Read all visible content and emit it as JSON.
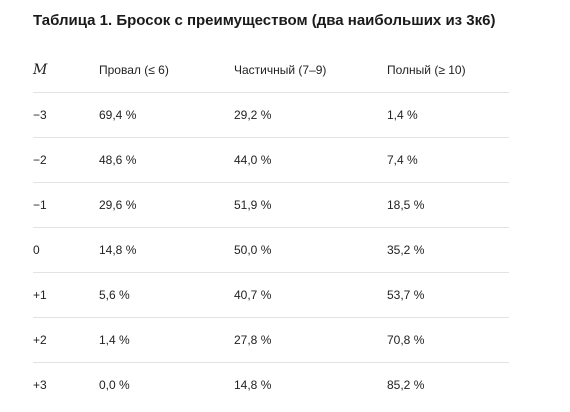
{
  "caption": "Таблица 1. Бросок с преимуществом (два наибольших из 3к6)",
  "table": {
    "headers": {
      "m": "M",
      "fail": "Провал (≤ 6)",
      "partial": "Частичный (7–9)",
      "full": "Полный (≥ 10)"
    },
    "rows": [
      {
        "m": "−3",
        "fail": "69,4 %",
        "partial": "29,2 %",
        "full": "1,4 %"
      },
      {
        "m": "−2",
        "fail": "48,6 %",
        "partial": "44,0 %",
        "full": "7,4 %"
      },
      {
        "m": "−1",
        "fail": "29,6 %",
        "partial": "51,9 %",
        "full": "18,5 %"
      },
      {
        "m": "0",
        "fail": "14,8 %",
        "partial": "50,0 %",
        "full": "35,2 %"
      },
      {
        "m": "+1",
        "fail": "5,6 %",
        "partial": "40,7 %",
        "full": "53,7 %"
      },
      {
        "m": "+2",
        "fail": "1,4 %",
        "partial": "27,8 %",
        "full": "70,8 %"
      },
      {
        "m": "+3",
        "fail": "0,0 %",
        "partial": "14,8 %",
        "full": "85,2 %"
      }
    ]
  }
}
